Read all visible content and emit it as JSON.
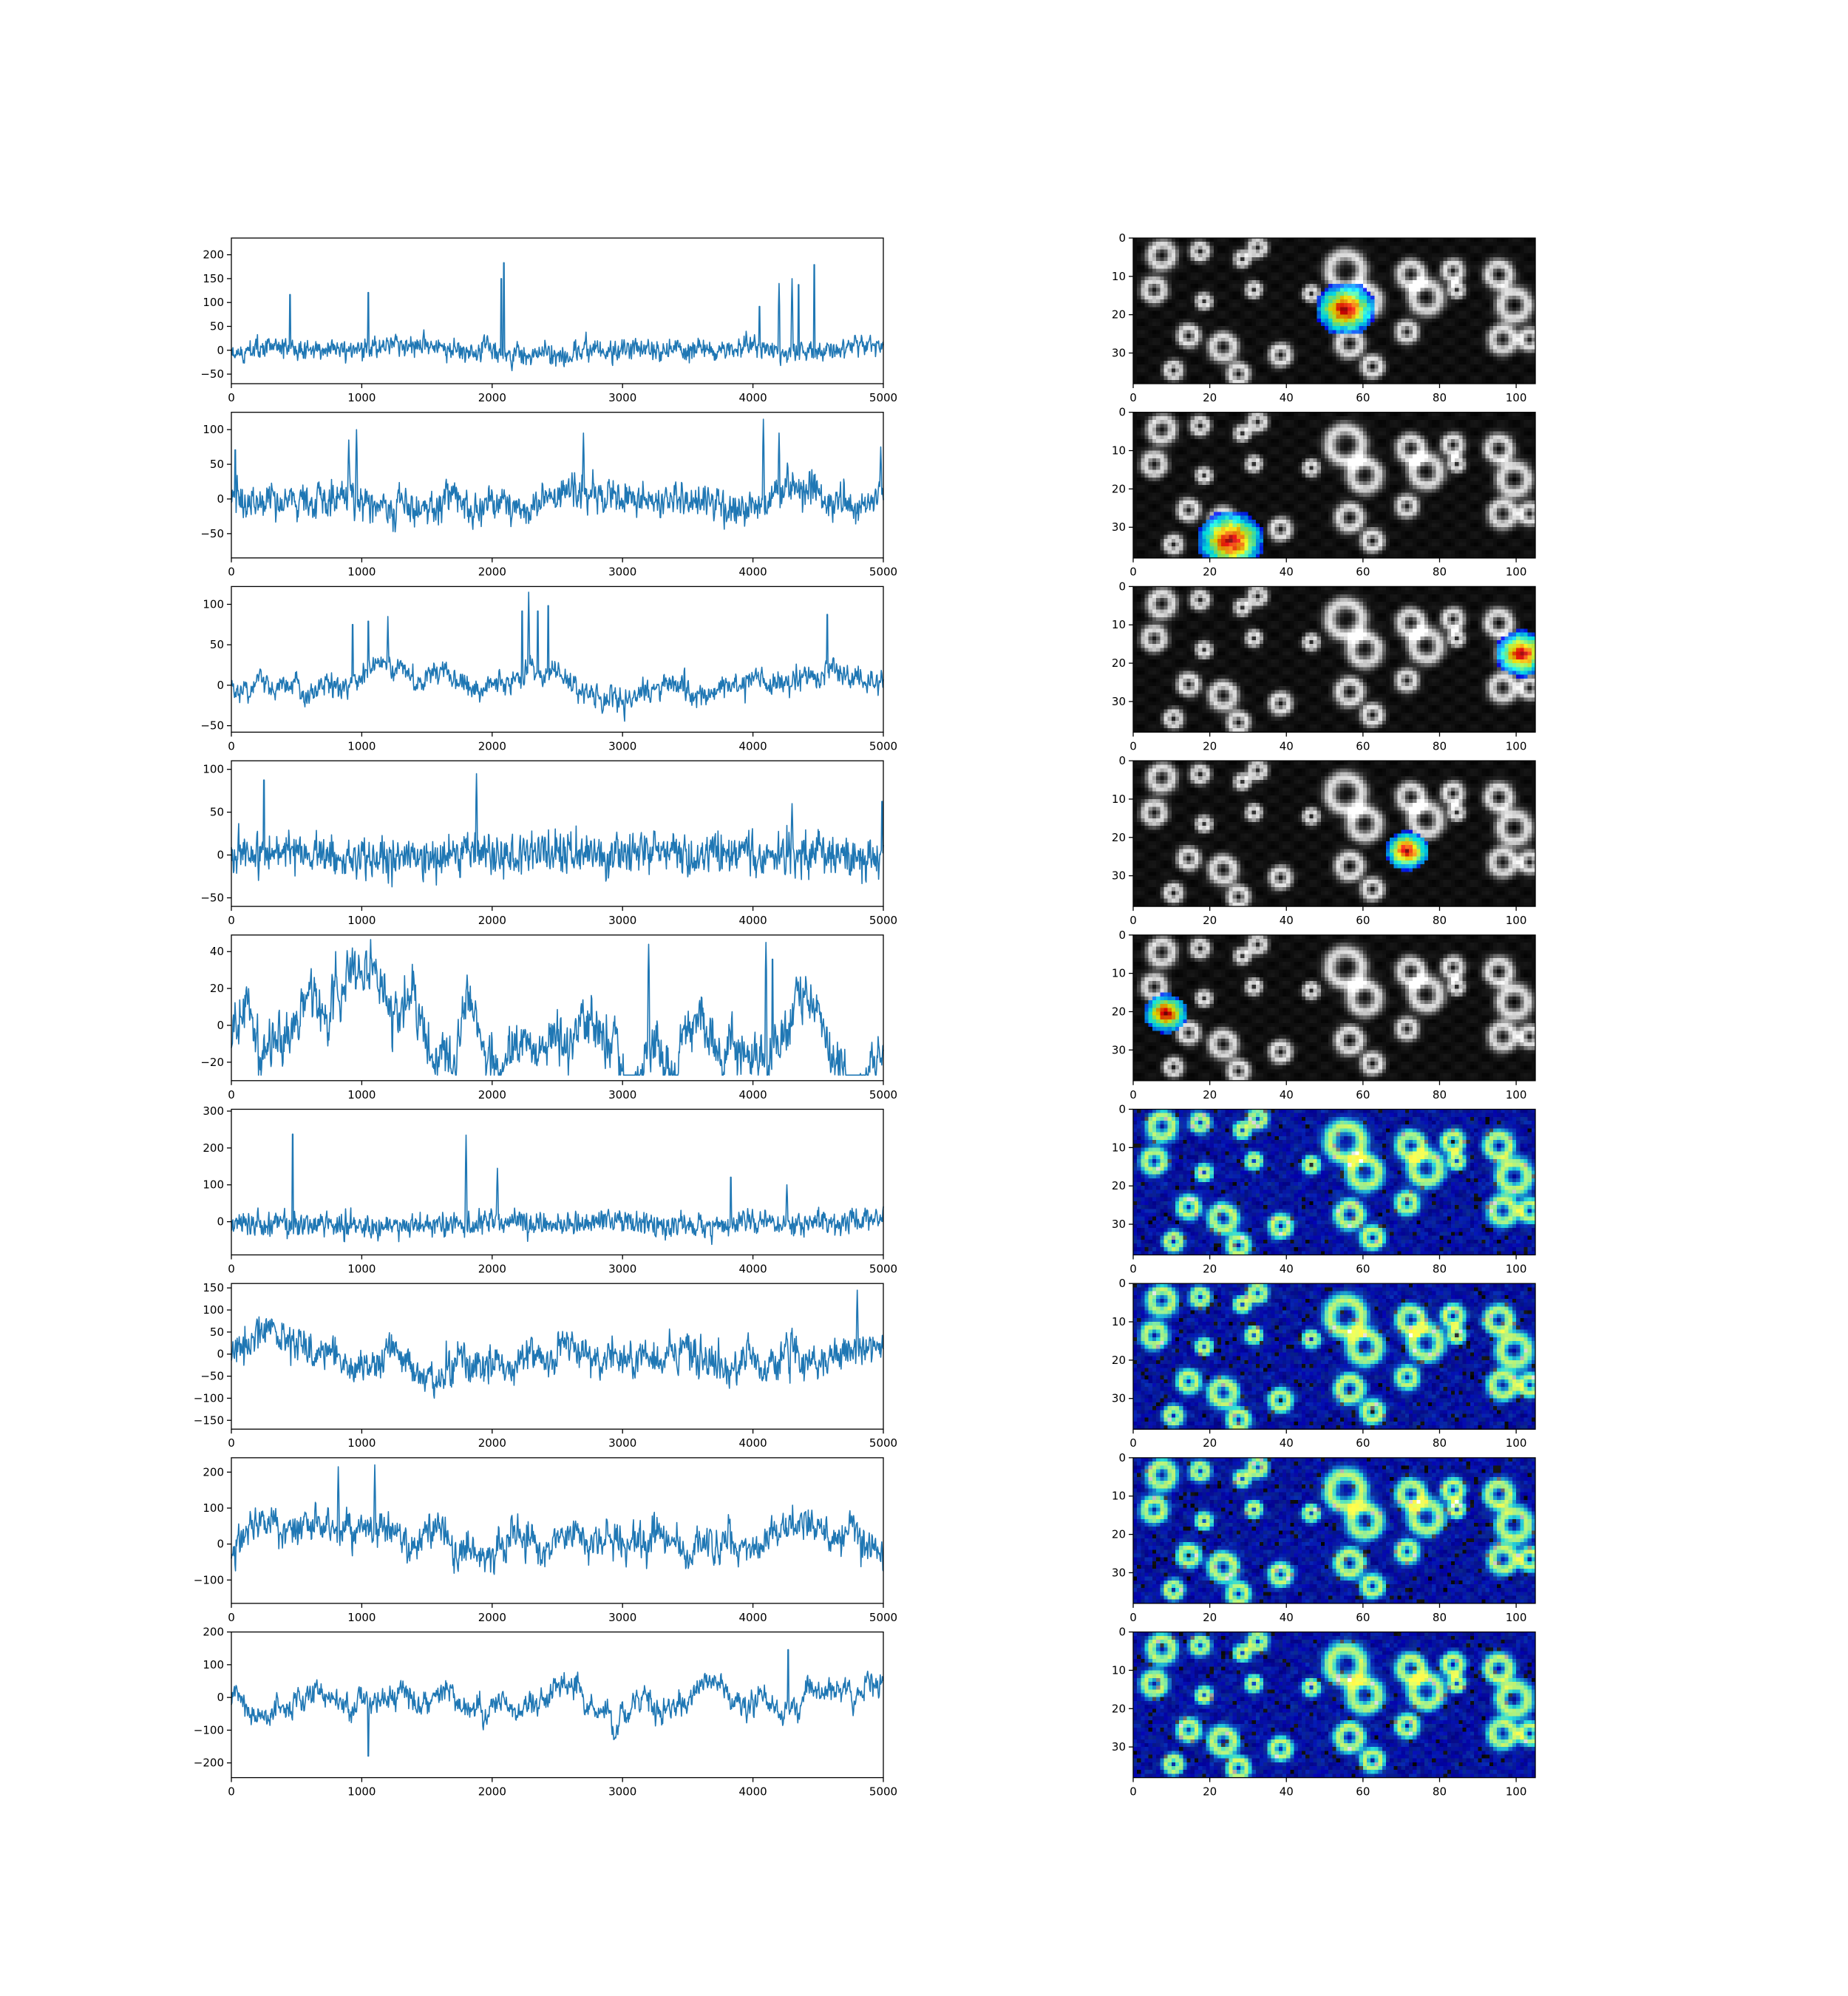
{
  "figure": {
    "colors": {
      "trace": "#1f77b4",
      "axes": "#000000",
      "background": "#ffffff"
    }
  },
  "chart_data": [
    {
      "type": "line",
      "panel": "trace-1",
      "xlim": [
        0,
        5000
      ],
      "ylim": [
        -70,
        235
      ],
      "xticks": [
        0,
        1000,
        2000,
        3000,
        4000,
        5000
      ],
      "yticks": [
        -50,
        0,
        50,
        100,
        150,
        200
      ],
      "noise": 14,
      "wander": 0.6,
      "seed": 11,
      "spikes": [
        [
          450,
          140
        ],
        [
          1050,
          145
        ],
        [
          2070,
          180
        ],
        [
          2090,
          220
        ],
        [
          4050,
          110
        ],
        [
          4200,
          140
        ],
        [
          4300,
          150
        ],
        [
          4350,
          165
        ],
        [
          4470,
          215
        ]
      ]
    },
    {
      "type": "line",
      "panel": "trace-2",
      "xlim": [
        0,
        5000
      ],
      "ylim": [
        -85,
        125
      ],
      "xticks": [
        0,
        1000,
        2000,
        3000,
        4000,
        5000
      ],
      "yticks": [
        -50,
        0,
        50,
        100
      ],
      "noise": 16,
      "wander": 1.0,
      "seed": 22,
      "spikes": [
        [
          30,
          85
        ],
        [
          900,
          85
        ],
        [
          960,
          100
        ],
        [
          2700,
          95
        ],
        [
          4080,
          115
        ],
        [
          4200,
          95
        ],
        [
          4980,
          75
        ]
      ]
    },
    {
      "type": "line",
      "panel": "trace-3",
      "xlim": [
        0,
        5000
      ],
      "ylim": [
        -58,
        122
      ],
      "xticks": [
        0,
        1000,
        2000,
        3000,
        4000,
        5000
      ],
      "yticks": [
        -50,
        0,
        50,
        100
      ],
      "noise": 9,
      "wander": 0.8,
      "seed": 33,
      "spikes": [
        [
          930,
          90
        ],
        [
          1050,
          95
        ],
        [
          1200,
          85
        ],
        [
          2230,
          110
        ],
        [
          2280,
          115
        ],
        [
          2350,
          110
        ],
        [
          2430,
          118
        ],
        [
          4570,
          105
        ]
      ]
    },
    {
      "type": "line",
      "panel": "trace-4",
      "xlim": [
        0,
        5000
      ],
      "ylim": [
        -60,
        110
      ],
      "xticks": [
        0,
        1000,
        2000,
        3000,
        4000,
        5000
      ],
      "yticks": [
        -50,
        0,
        50,
        100
      ],
      "noise": 16,
      "wander": 0.2,
      "seed": 44,
      "spikes": [
        [
          250,
          105
        ],
        [
          1880,
          95
        ],
        [
          4300,
          60
        ],
        [
          4990,
          75
        ]
      ]
    },
    {
      "type": "line",
      "panel": "trace-5",
      "xlim": [
        0,
        5000
      ],
      "ylim": [
        -30,
        49
      ],
      "xticks": [
        0,
        1000,
        2000,
        3000,
        4000,
        5000
      ],
      "yticks": [
        -20,
        0,
        20,
        40
      ],
      "noise": 8,
      "wander": 1.3,
      "seed": 55,
      "spikes": [
        [
          800,
          40
        ],
        [
          3200,
          44
        ],
        [
          4100,
          45
        ],
        [
          4150,
          43
        ]
      ]
    },
    {
      "type": "line",
      "panel": "trace-6",
      "xlim": [
        0,
        5000
      ],
      "ylim": [
        -90,
        305
      ],
      "xticks": [
        0,
        1000,
        2000,
        3000,
        4000,
        5000
      ],
      "yticks": [
        0,
        100,
        200,
        300
      ],
      "noise": 22,
      "wander": 0.6,
      "seed": 66,
      "spikes": [
        [
          470,
          285
        ],
        [
          1800,
          235
        ],
        [
          2040,
          145
        ],
        [
          3830,
          145
        ],
        [
          4260,
          100
        ]
      ]
    },
    {
      "type": "line",
      "panel": "trace-7",
      "xlim": [
        0,
        5000
      ],
      "ylim": [
        -170,
        160
      ],
      "xticks": [
        0,
        1000,
        2000,
        3000,
        4000,
        5000
      ],
      "yticks": [
        -150,
        -100,
        -50,
        0,
        50,
        100,
        150
      ],
      "noise": 25,
      "wander": 1.9,
      "seed": 77,
      "spikes": [
        [
          4800,
          145
        ]
      ]
    },
    {
      "type": "line",
      "panel": "trace-8",
      "xlim": [
        0,
        5000
      ],
      "ylim": [
        -165,
        240
      ],
      "xticks": [
        0,
        1000,
        2000,
        3000,
        4000,
        5000
      ],
      "yticks": [
        -100,
        0,
        100,
        200
      ],
      "noise": 30,
      "wander": 2.6,
      "seed": 88,
      "spikes": [
        [
          820,
          215
        ],
        [
          1100,
          220
        ]
      ]
    },
    {
      "type": "line",
      "panel": "trace-9",
      "xlim": [
        0,
        5000
      ],
      "ylim": [
        -245,
        200
      ],
      "xticks": [
        0,
        1000,
        2000,
        3000,
        4000,
        5000
      ],
      "yticks": [
        -200,
        -100,
        0,
        100,
        200
      ],
      "noise": 22,
      "wander": 3.0,
      "seed": 99,
      "spikes": [
        [
          1050,
          -215
        ],
        [
          4270,
          175
        ]
      ]
    }
  ],
  "image_panels": [
    {
      "type": "heatmap",
      "panel": "roi-map-1",
      "xlim": [
        0,
        105
      ],
      "ylim": [
        0,
        38
      ],
      "xticks": [
        0,
        20,
        40,
        60,
        80,
        100
      ],
      "yticks": [
        0,
        10,
        20,
        30
      ],
      "mode": "roi",
      "roi": {
        "x": 55,
        "y": 18,
        "r": 8
      }
    },
    {
      "type": "heatmap",
      "panel": "roi-map-2",
      "xlim": [
        0,
        105
      ],
      "ylim": [
        0,
        38
      ],
      "xticks": [
        0,
        20,
        40,
        60,
        80,
        100
      ],
      "yticks": [
        0,
        10,
        20,
        30
      ],
      "mode": "roi",
      "roi": {
        "x": 25,
        "y": 33,
        "r": 9
      }
    },
    {
      "type": "heatmap",
      "panel": "roi-map-3",
      "xlim": [
        0,
        105
      ],
      "ylim": [
        0,
        38
      ],
      "xticks": [
        0,
        20,
        40,
        60,
        80,
        100
      ],
      "yticks": [
        0,
        10,
        20,
        30
      ],
      "mode": "roi",
      "roi": {
        "x": 101,
        "y": 17,
        "r": 7
      }
    },
    {
      "type": "heatmap",
      "panel": "roi-map-4",
      "xlim": [
        0,
        105
      ],
      "ylim": [
        0,
        38
      ],
      "xticks": [
        0,
        20,
        40,
        60,
        80,
        100
      ],
      "yticks": [
        0,
        10,
        20,
        30
      ],
      "mode": "roi",
      "roi": {
        "x": 71,
        "y": 23,
        "r": 6
      }
    },
    {
      "type": "heatmap",
      "panel": "roi-map-5",
      "xlim": [
        0,
        105
      ],
      "ylim": [
        0,
        38
      ],
      "xticks": [
        0,
        20,
        40,
        60,
        80,
        100
      ],
      "yticks": [
        0,
        10,
        20,
        30
      ],
      "mode": "roi",
      "roi": {
        "x": 8,
        "y": 20,
        "r": 6
      }
    },
    {
      "type": "heatmap",
      "panel": "roi-map-6",
      "xlim": [
        0,
        105
      ],
      "ylim": [
        0,
        38
      ],
      "xticks": [
        0,
        20,
        40,
        60,
        80,
        100
      ],
      "yticks": [
        0,
        10,
        20,
        30
      ],
      "mode": "overlay"
    },
    {
      "type": "heatmap",
      "panel": "roi-map-7",
      "xlim": [
        0,
        105
      ],
      "ylim": [
        0,
        38
      ],
      "xticks": [
        0,
        20,
        40,
        60,
        80,
        100
      ],
      "yticks": [
        0,
        10,
        20,
        30
      ],
      "mode": "overlay"
    },
    {
      "type": "heatmap",
      "panel": "roi-map-8",
      "xlim": [
        0,
        105
      ],
      "ylim": [
        0,
        38
      ],
      "xticks": [
        0,
        20,
        40,
        60,
        80,
        100
      ],
      "yticks": [
        0,
        10,
        20,
        30
      ],
      "mode": "overlay"
    },
    {
      "type": "heatmap",
      "panel": "roi-map-9",
      "xlim": [
        0,
        105
      ],
      "ylim": [
        0,
        38
      ],
      "xticks": [
        0,
        20,
        40,
        60,
        80,
        100
      ],
      "yticks": [
        0,
        10,
        20,
        30
      ],
      "mode": "overlay"
    }
  ]
}
